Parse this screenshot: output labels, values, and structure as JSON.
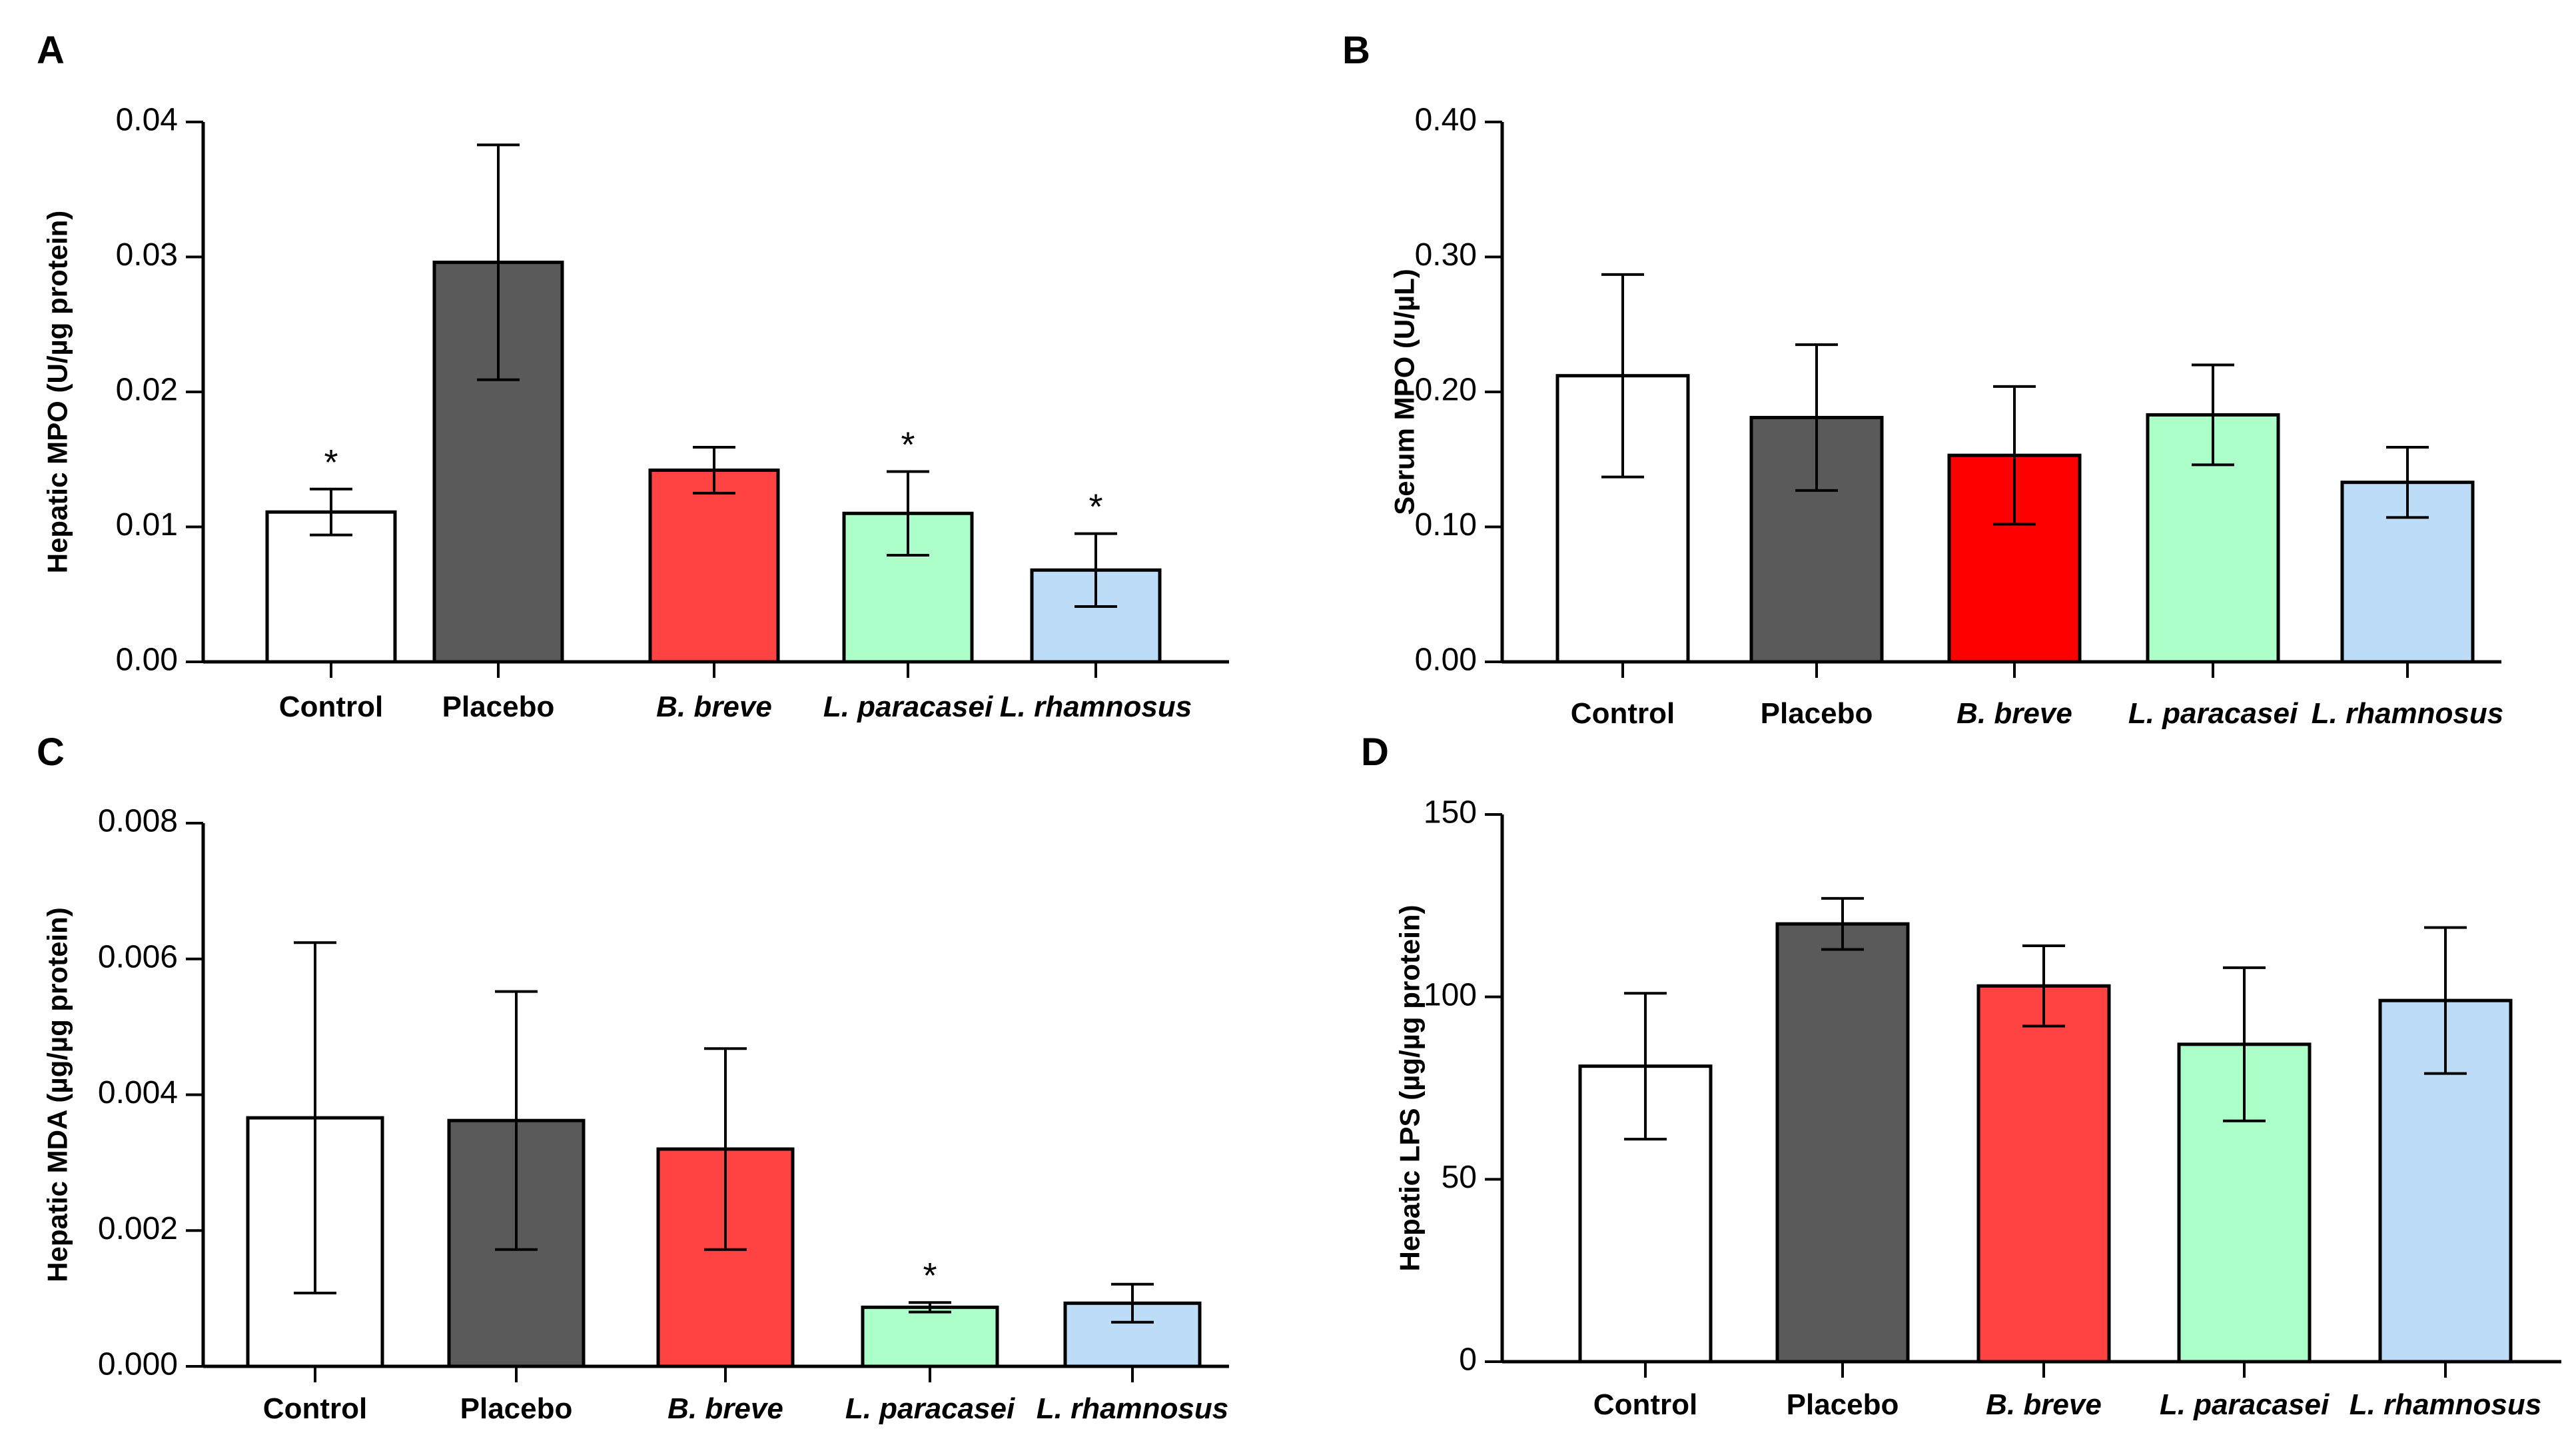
{
  "colors": {
    "Control": "#ffffff",
    "Placebo": "#5a5a5a",
    "B. breve": "#ff4242",
    "L. paracasei": "#acffc8",
    "L. rhamnosus": "#bcdcf8",
    "axis": "#000000"
  },
  "chart_data": [
    {
      "panel": "A",
      "type": "bar",
      "ylabel": "Hepatic MPO (U/µg protein)",
      "categories": [
        "Control",
        "Placebo",
        "B. breve",
        "L. paracasei",
        "L. rhamnosus"
      ],
      "italic": [
        false,
        false,
        true,
        true,
        true
      ],
      "values": [
        0.0111,
        0.0296,
        0.0142,
        0.011,
        0.0068
      ],
      "errors": [
        0.0017,
        0.0087,
        0.0017,
        0.0031,
        0.0027
      ],
      "significance": [
        "*",
        "",
        "",
        "*",
        "*"
      ],
      "ylim": [
        0,
        0.04
      ],
      "yticks": [
        "0.00",
        "0.01",
        "0.02",
        "0.03",
        "0.04"
      ],
      "fills": [
        "#ffffff",
        "#5a5a5a",
        "#ff4242",
        "#acffc8",
        "#bcdcf8"
      ]
    },
    {
      "panel": "B",
      "type": "bar",
      "ylabel": "Serum MPO (U/µL)",
      "categories": [
        "Control",
        "Placebo",
        "B. breve",
        "L. paracasei",
        "L. rhamnosus"
      ],
      "italic": [
        false,
        false,
        true,
        true,
        true
      ],
      "values": [
        0.212,
        0.181,
        0.153,
        0.183,
        0.133
      ],
      "errors": [
        0.075,
        0.054,
        0.051,
        0.037,
        0.026
      ],
      "significance": [
        "",
        "",
        "",
        "",
        ""
      ],
      "ylim": [
        0,
        0.4
      ],
      "yticks": [
        "0.00",
        "0.10",
        "0.20",
        "0.30",
        "0.40"
      ],
      "fills": [
        "#ffffff",
        "#5a5a5a",
        "#ff0000",
        "#acffc8",
        "#bcdcf8"
      ]
    },
    {
      "panel": "C",
      "type": "bar",
      "ylabel": "Hepatic MDA (µg/µg protein)",
      "categories": [
        "Control",
        "Placebo",
        "B. breve",
        "L. paracasei",
        "L. rhamnosus"
      ],
      "italic": [
        false,
        false,
        true,
        true,
        true
      ],
      "values": [
        0.00366,
        0.00362,
        0.0032,
        0.00087,
        0.00093
      ],
      "errors": [
        0.00258,
        0.0019,
        0.00148,
        7e-05,
        0.00028
      ],
      "significance": [
        "",
        "",
        "",
        "*",
        ""
      ],
      "ylim": [
        0,
        0.008
      ],
      "yticks": [
        "0.000",
        "0.002",
        "0.004",
        "0.006",
        "0.008"
      ],
      "fills": [
        "#ffffff",
        "#5a5a5a",
        "#ff4242",
        "#acffc8",
        "#bcdcf8"
      ]
    },
    {
      "panel": "D",
      "type": "bar",
      "ylabel": "Hepatic LPS  (µg/µg protein)",
      "categories": [
        "Control",
        "Placebo",
        "B. breve",
        "L. paracasei",
        "L. rhamnosus"
      ],
      "italic": [
        false,
        false,
        true,
        true,
        true
      ],
      "values": [
        81,
        120,
        103,
        87,
        99
      ],
      "errors": [
        20,
        7,
        11,
        21,
        20
      ],
      "significance": [
        "",
        "",
        "",
        "",
        ""
      ],
      "ylim": [
        0,
        150
      ],
      "yticks": [
        "0",
        "50",
        "100",
        "150"
      ],
      "fills": [
        "#ffffff",
        "#5a5a5a",
        "#ff4242",
        "#acffc8",
        "#bcdcf8"
      ]
    }
  ]
}
